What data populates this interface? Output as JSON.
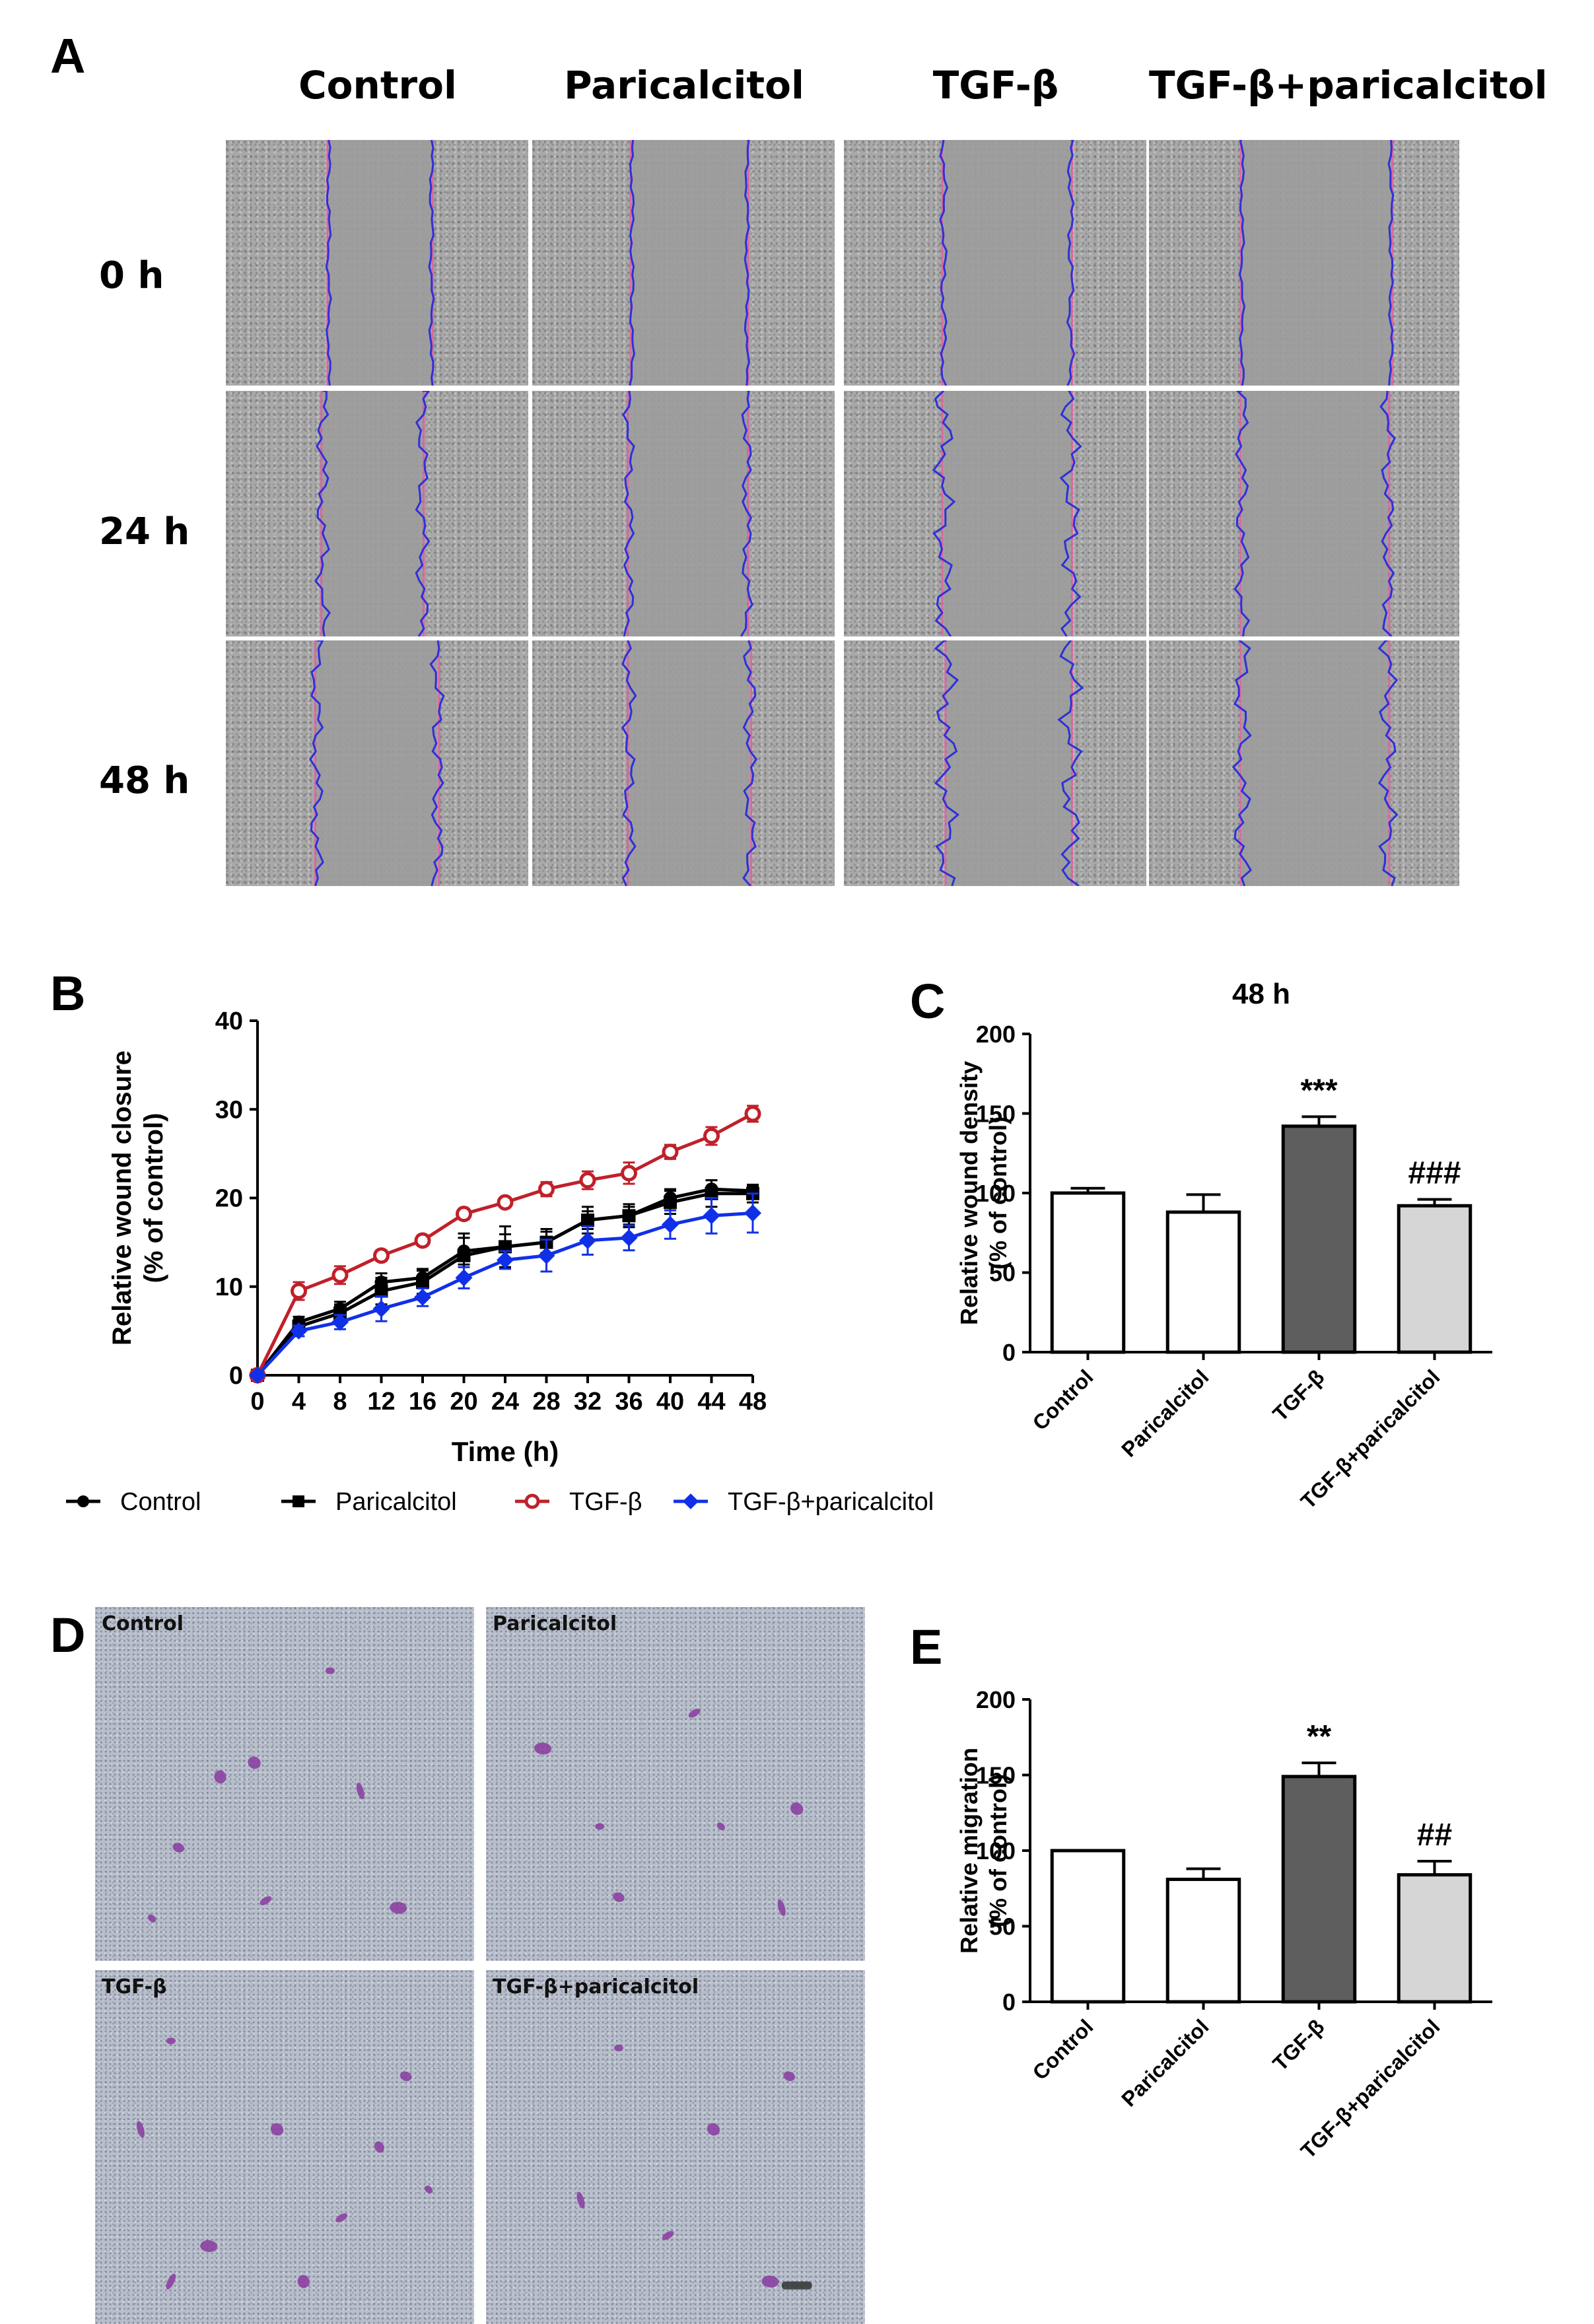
{
  "panel_a": {
    "label": "A",
    "columns": [
      "Control",
      "Paricalcitol",
      "TGF-β",
      "TGF-β+paricalcitol"
    ],
    "rows": [
      "0 h",
      "24 h",
      "48 h"
    ]
  },
  "panel_b": {
    "label": "B",
    "legend": [
      {
        "name": "Control",
        "color": "#000000",
        "marker": "circle"
      },
      {
        "name": "Paricalcitol",
        "color": "#000000",
        "marker": "square"
      },
      {
        "name": "TGF-β",
        "color": "#c0202a",
        "marker": "open-circle"
      },
      {
        "name": "TGF-β+paricalcitol",
        "color": "#1030e8",
        "marker": "diamond"
      }
    ]
  },
  "panel_c": {
    "label": "C"
  },
  "panel_d": {
    "label": "D",
    "images": [
      "Control",
      "Paricalcitol",
      "TGF-β",
      "TGF-β+paricalcitol"
    ]
  },
  "panel_e": {
    "label": "E"
  },
  "colors": {
    "white_bar": "#ffffff",
    "dark_bar": "#5e5e5e",
    "light_bar": "#d6d6d6",
    "wound_edge_blue": "#3030d8",
    "wound_edge_pink": "#e060a0",
    "crystal_violet": "#8a3aa0"
  },
  "chart_data": [
    {
      "type": "line",
      "title": "",
      "xlabel": "Time (h)",
      "ylabel": "Relative wound closure\n(% of control)",
      "x": [
        0,
        4,
        8,
        12,
        16,
        20,
        24,
        28,
        32,
        36,
        40,
        44,
        48
      ],
      "xticks": [
        "0",
        "4",
        "8",
        "12",
        "16",
        "20",
        "24",
        "28",
        "32",
        "36",
        "40",
        "44",
        "48"
      ],
      "ylim": [
        0,
        40
      ],
      "yticks": [
        "0",
        "10",
        "20",
        "30",
        "40"
      ],
      "legend_position": "bottom",
      "series": [
        {
          "name": "Control",
          "values": [
            0,
            6,
            7.5,
            10.5,
            11,
            14,
            14.5,
            15,
            17.5,
            18,
            20,
            21,
            20.8
          ],
          "errors": [
            0.3,
            0.6,
            0.8,
            1.0,
            1.0,
            1.5,
            1.4,
            1.2,
            1.0,
            1.0,
            1.0,
            1.0,
            0.5
          ]
        },
        {
          "name": "Paricalcitol",
          "values": [
            0,
            5.5,
            7,
            9.5,
            10.5,
            13.5,
            14.5,
            15,
            17.5,
            18,
            19.5,
            20.5,
            20.5
          ],
          "errors": [
            0.3,
            0.6,
            1.0,
            1.5,
            1.3,
            2.5,
            2.3,
            1.5,
            1.5,
            1.3,
            1.3,
            1.5,
            1.0
          ]
        },
        {
          "name": "TGF-β",
          "values": [
            0,
            9.5,
            11.3,
            13.5,
            15.2,
            18.2,
            19.5,
            21,
            22,
            22.8,
            25.2,
            27,
            29.5
          ],
          "errors": [
            0.3,
            1.0,
            1.0,
            0.6,
            0.6,
            0.6,
            0.5,
            0.8,
            1.0,
            1.2,
            0.8,
            1.0,
            0.9
          ]
        },
        {
          "name": "TGF-β+paricalcitol",
          "values": [
            0,
            5,
            6,
            7.5,
            8.8,
            11,
            13,
            13.5,
            15.2,
            15.5,
            17,
            18,
            18.3
          ],
          "errors": [
            0.3,
            0.6,
            0.8,
            1.4,
            1.0,
            1.2,
            1.0,
            1.8,
            1.6,
            1.4,
            1.6,
            2.0,
            2.2
          ]
        }
      ]
    },
    {
      "type": "bar",
      "title": "48 h",
      "xlabel": "",
      "ylabel": "Relative wound density\n(% of control)",
      "categories": [
        "Control",
        "Paricalcitol",
        "TGF-β",
        "TGF-β+paricalcitol"
      ],
      "values": [
        100,
        88,
        142,
        92
      ],
      "errors": [
        3,
        11,
        6,
        4
      ],
      "annotations": [
        "",
        "",
        "***",
        "###"
      ],
      "ylim": [
        0,
        200
      ],
      "yticks": [
        "0",
        "50",
        "100",
        "150",
        "200"
      ],
      "bar_colors": [
        "#ffffff",
        "#ffffff",
        "#5e5e5e",
        "#d6d6d6"
      ]
    },
    {
      "type": "bar",
      "title": "",
      "xlabel": "",
      "ylabel": "Relative migration\n(% of control)",
      "categories": [
        "Control",
        "Paricalcitol",
        "TGF-β",
        "TGF-β+paricalcitol"
      ],
      "values": [
        100,
        81,
        149,
        84
      ],
      "errors": [
        0,
        7,
        9,
        9
      ],
      "annotations": [
        "",
        "",
        "**",
        "##"
      ],
      "ylim": [
        0,
        200
      ],
      "yticks": [
        "0",
        "50",
        "100",
        "150",
        "200"
      ],
      "bar_colors": [
        "#ffffff",
        "#ffffff",
        "#5e5e5e",
        "#d6d6d6"
      ]
    }
  ]
}
